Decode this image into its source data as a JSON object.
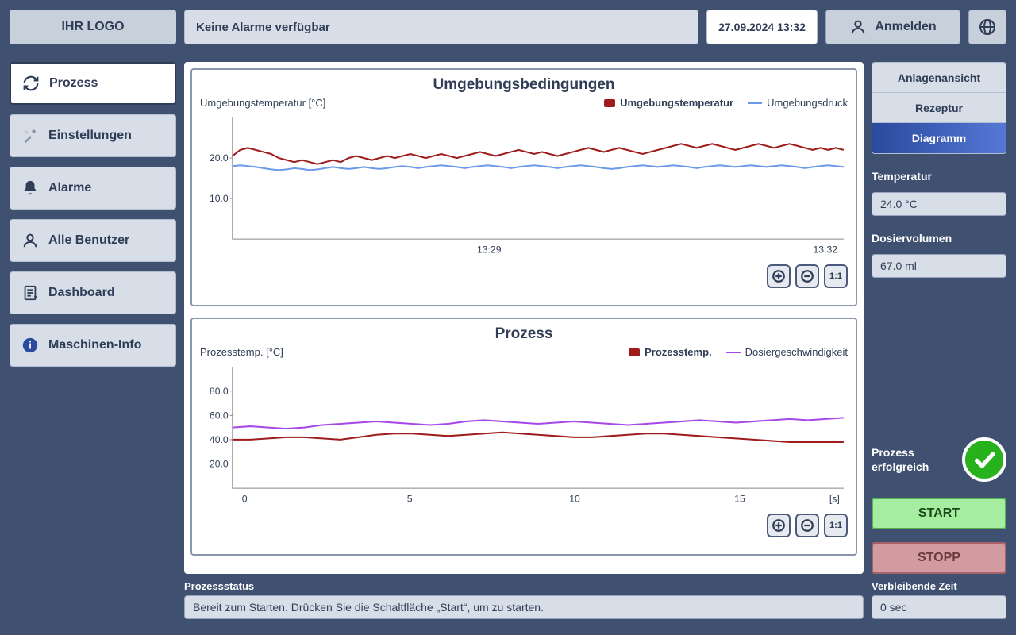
{
  "header": {
    "logo": "IHR LOGO",
    "alarm_bar": "Keine Alarme verfügbar",
    "datetime": "27.09.2024 13:32",
    "login_label": "Anmelden"
  },
  "sidebar": {
    "items": [
      {
        "label": "Prozess",
        "icon": "refresh",
        "active": true
      },
      {
        "label": "Einstellungen",
        "icon": "wrench",
        "active": false
      },
      {
        "label": "Alarme",
        "icon": "bell",
        "active": false
      },
      {
        "label": "Alle Benutzer",
        "icon": "user",
        "active": false
      },
      {
        "label": "Dashboard",
        "icon": "clipboard",
        "active": false
      },
      {
        "label": "Maschinen-Info",
        "icon": "info",
        "active": false
      }
    ]
  },
  "chart1": {
    "title": "Umgebungsbedingungen",
    "ylabel": "Umgebungstemperatur [°C]",
    "series": [
      {
        "name": "Umgebungstemperatur",
        "color": "#9e1c1c",
        "swatch": true
      },
      {
        "name": "Umgebungsdruck",
        "color": "#6b9ae8",
        "swatch": false
      }
    ],
    "yticks": [
      10.0,
      20.0
    ],
    "ylim": [
      0,
      30
    ],
    "xticks": [
      "13:29",
      "13:32"
    ],
    "xtick_pos": [
      0.42,
      0.97
    ],
    "line1_color": "#9e1c1c",
    "line2_color": "#6b9ae8",
    "data1": [
      20.5,
      22,
      22.5,
      22,
      21.5,
      21,
      20,
      19.5,
      19,
      19.5,
      19,
      18.5,
      19,
      19.5,
      19,
      20,
      20.5,
      20,
      19.5,
      20,
      20.5,
      20,
      20.5,
      21,
      20.5,
      20,
      20.5,
      21,
      20.5,
      20,
      20.5,
      21,
      21.5,
      21,
      20.5,
      21,
      21.5,
      22,
      21.5,
      21,
      21.5,
      21,
      20.5,
      21,
      21.5,
      22,
      22.5,
      22,
      21.5,
      22,
      22.5,
      22,
      21.5,
      21,
      21.5,
      22,
      22.5,
      23,
      23.5,
      23,
      22.5,
      23,
      23.5,
      23,
      22.5,
      22,
      22.5,
      23,
      23.5,
      23,
      22.5,
      23,
      23.5,
      23,
      22.5,
      22,
      22.5,
      22,
      22.5,
      22
    ],
    "data2": [
      18,
      18.2,
      18,
      17.8,
      17.5,
      17.2,
      17,
      17.2,
      17.5,
      17.3,
      17,
      17.2,
      17.5,
      17.8,
      17.5,
      17.3,
      17.5,
      17.8,
      17.5,
      17.3,
      17.5,
      17.8,
      18,
      17.8,
      17.5,
      17.8,
      18,
      18.2,
      18,
      17.8,
      17.5,
      17.8,
      18,
      18.2,
      18,
      17.8,
      17.5,
      17.8,
      18,
      18.2,
      18,
      17.8,
      17.5,
      17.8,
      18,
      18.2,
      18,
      17.8,
      17.5,
      17.3,
      17.5,
      17.8,
      18,
      18.2,
      18,
      17.8,
      18,
      18.2,
      18,
      17.8,
      17.5,
      17.8,
      18,
      18.2,
      18,
      17.8,
      18,
      18.2,
      18,
      17.8,
      18,
      18.2,
      18,
      17.8,
      17.5,
      17.8,
      18,
      18.2,
      18,
      17.8
    ]
  },
  "chart2": {
    "title": "Prozess",
    "ylabel": "Prozesstemp. [°C]",
    "series": [
      {
        "name": "Prozesstemp.",
        "color": "#9e1c1c",
        "swatch": true
      },
      {
        "name": "Dosiergeschwindigkeit",
        "color": "#a648e8",
        "swatch": false
      }
    ],
    "yticks": [
      20.0,
      40.0,
      60.0,
      80.0
    ],
    "ylim": [
      0,
      100
    ],
    "xticks": [
      "0",
      "5",
      "10",
      "15"
    ],
    "xtick_pos": [
      0.02,
      0.29,
      0.56,
      0.83
    ],
    "xunit": "[s]",
    "line1_color": "#9e1c1c",
    "line2_color": "#a648e8",
    "data1": [
      40,
      40,
      41,
      42,
      42,
      41,
      40,
      42,
      44,
      45,
      45,
      44,
      43,
      44,
      45,
      46,
      45,
      44,
      43,
      42,
      42,
      43,
      44,
      45,
      45,
      44,
      43,
      42,
      41,
      40,
      39,
      38,
      38,
      38,
      38
    ],
    "data2": [
      50,
      51,
      50,
      49,
      50,
      52,
      53,
      54,
      55,
      54,
      53,
      52,
      53,
      55,
      56,
      55,
      54,
      53,
      54,
      55,
      54,
      53,
      52,
      53,
      54,
      55,
      56,
      55,
      54,
      55,
      56,
      57,
      56,
      57,
      58
    ]
  },
  "right": {
    "tabs": [
      "Anlagenansicht",
      "Rezeptur",
      "Diagramm"
    ],
    "active_tab": 2,
    "temp_label": "Temperatur",
    "temp_value": "24.0 °C",
    "vol_label": "Dosiervolumen",
    "vol_value": "67.0 ml",
    "status_text": "Prozess erfolgreich",
    "start": "START",
    "stop": "STOPP"
  },
  "status": {
    "process_label": "Prozessstatus",
    "process_value": "Bereit zum Starten. Drücken Sie die Schaltfläche „Start“, um zu starten.",
    "time_label": "Verbleibende Zeit",
    "time_value": "0 sec"
  },
  "colors": {
    "bg": "#3f5070",
    "panel": "#d7dee8",
    "border": "#b4c0d2",
    "text": "#2f3d56"
  }
}
